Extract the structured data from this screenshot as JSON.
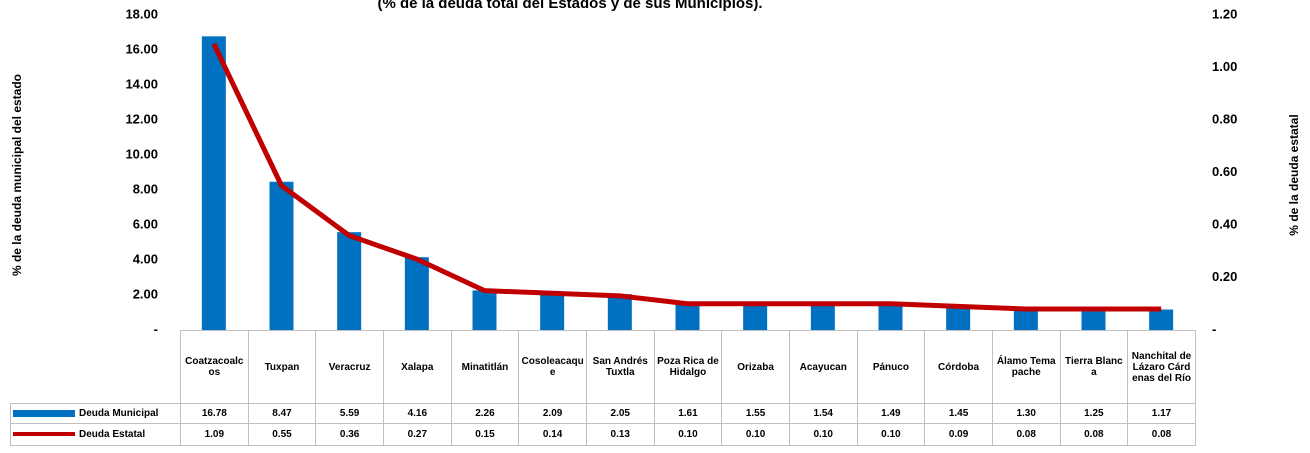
{
  "chart_data": {
    "type": "bar",
    "title": "(% de la deuda total del Estados y de sus Municipios).",
    "y_label": "% de la deuda municipal del estado",
    "y2_label": "% de la deuda estatal",
    "categories": [
      "Coatzacoalcos",
      "Tuxpan",
      "Veracruz",
      "Xalapa",
      "Minatitlán",
      "Cosoleacaque",
      "San Andrés Tuxtla",
      "Poza Rica de Hidalgo",
      "Orizaba",
      "Acayucan",
      "Pánuco",
      "Córdoba",
      "Álamo Temapache",
      "Tierra Blanca",
      "Nanchital de Lázaro Cárdenas del Río"
    ],
    "series": [
      {
        "name": "Deuda Municipal",
        "type": "bar",
        "color": "#0070c0",
        "axis": "y",
        "values": [
          16.78,
          8.47,
          5.59,
          4.16,
          2.26,
          2.09,
          2.05,
          1.61,
          1.55,
          1.54,
          1.49,
          1.45,
          1.3,
          1.25,
          1.17
        ],
        "value_labels": [
          "16.78",
          "8.47",
          "5.59",
          "4.16",
          "2.26",
          "2.09",
          "2.05",
          "1.61",
          "1.55",
          "1.54",
          "1.49",
          "1.45",
          "1.30",
          "1.25",
          "1.17"
        ]
      },
      {
        "name": "Deuda Estatal",
        "type": "line",
        "color": "#c00000",
        "axis": "y2",
        "values": [
          1.09,
          0.55,
          0.36,
          0.27,
          0.15,
          0.14,
          0.13,
          0.1,
          0.1,
          0.1,
          0.1,
          0.09,
          0.08,
          0.08,
          0.08
        ],
        "value_labels": [
          "1.09",
          "0.55",
          "0.36",
          "0.27",
          "0.15",
          "0.14",
          "0.13",
          "0.10",
          "0.10",
          "0.10",
          "0.10",
          "0.09",
          "0.08",
          "0.08",
          "0.08"
        ]
      }
    ],
    "ylim": [
      0,
      18
    ],
    "yticks": [
      {
        "value": 0,
        "label": "-"
      },
      {
        "value": 2,
        "label": "2.00"
      },
      {
        "value": 4,
        "label": "4.00"
      },
      {
        "value": 6,
        "label": "6.00"
      },
      {
        "value": 8,
        "label": "8.00"
      },
      {
        "value": 10,
        "label": "10.00"
      },
      {
        "value": 12,
        "label": "12.00"
      },
      {
        "value": 14,
        "label": "14.00"
      },
      {
        "value": 16,
        "label": "16.00"
      },
      {
        "value": 18,
        "label": "18.00"
      }
    ],
    "y2lim": [
      0,
      1.2
    ],
    "y2ticks": [
      {
        "value": 0,
        "label": "-"
      },
      {
        "value": 0.2,
        "label": "0.20"
      },
      {
        "value": 0.4,
        "label": "0.40"
      },
      {
        "value": 0.6,
        "label": "0.60"
      },
      {
        "value": 0.8,
        "label": "0.80"
      },
      {
        "value": 1,
        "label": "1.00"
      },
      {
        "value": 1.2,
        "label": "1.20"
      }
    ]
  }
}
